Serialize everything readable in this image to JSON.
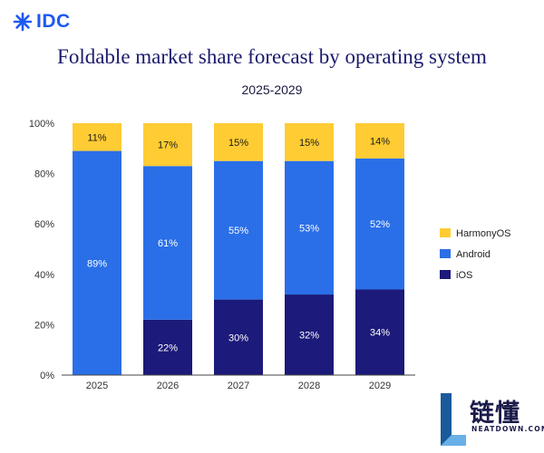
{
  "brand": {
    "logo_text": "IDC"
  },
  "header": {
    "title": "Foldable market share forecast by operating system",
    "subtitle": "2025-2029"
  },
  "chart_data": {
    "type": "bar",
    "stacked": true,
    "title": "Foldable market share forecast by operating system",
    "subtitle": "2025-2029",
    "categories": [
      "2025",
      "2026",
      "2027",
      "2028",
      "2029"
    ],
    "series": [
      {
        "name": "iOS",
        "values": [
          0,
          22,
          30,
          32,
          34
        ],
        "labels": [
          "",
          "22%",
          "30%",
          "32%",
          "34%"
        ],
        "color": "#1C1A7A",
        "label_color": "#ffffff"
      },
      {
        "name": "Android",
        "values": [
          89,
          61,
          55,
          53,
          52
        ],
        "labels": [
          "89%",
          "61%",
          "55%",
          "53%",
          "52%"
        ],
        "color": "#2A6FE8",
        "label_color": "#ffffff"
      },
      {
        "name": "HarmonyOS",
        "values": [
          11,
          17,
          15,
          15,
          14
        ],
        "labels": [
          "11%",
          "17%",
          "15%",
          "15%",
          "14%"
        ],
        "color": "#FFCC33",
        "label_color": "#1a1a1a"
      }
    ],
    "legend_order": [
      "HarmonyOS",
      "Android",
      "iOS"
    ],
    "y_ticks": [
      "0%",
      "20%",
      "40%",
      "60%",
      "80%",
      "100%"
    ],
    "ylim": [
      0,
      100
    ],
    "legend_position": "right",
    "grid": false
  },
  "watermark": {
    "cn_text": "链懂",
    "en_text": "NEATDOWN.COM"
  }
}
